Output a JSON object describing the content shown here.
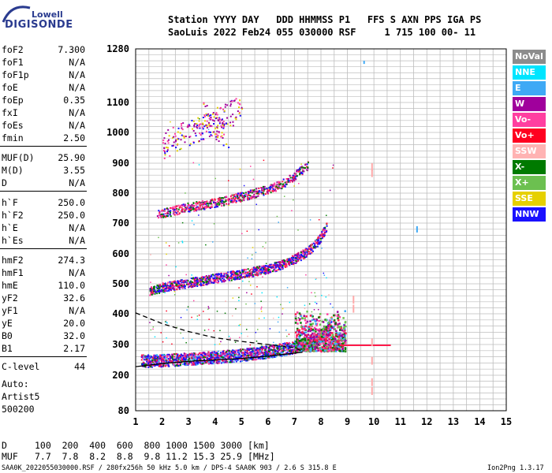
{
  "logo": {
    "line1": "Lowell",
    "line2": "DIGISONDE"
  },
  "header": {
    "line1": "Station YYYY DAY   DDD HHMMSS P1   FFS S AXN PPS IGA PS",
    "line2": "SaoLuis 2022 Feb24 055 030000 RSF     1 715 100 00- 11"
  },
  "params": [
    {
      "label": "foF2",
      "value": "7.300"
    },
    {
      "label": "foF1",
      "value": "N/A"
    },
    {
      "label": "foF1p",
      "value": "N/A"
    },
    {
      "label": "foE",
      "value": "N/A"
    },
    {
      "label": "foEp",
      "value": "0.35"
    },
    {
      "label": "fxI",
      "value": "N/A"
    },
    {
      "label": "foEs",
      "value": "N/A"
    },
    {
      "label": "fmin",
      "value": "2.50"
    },
    {
      "label": "MUF(D)",
      "value": "25.90"
    },
    {
      "label": "M(D)",
      "value": "3.55"
    },
    {
      "label": "D",
      "value": "N/A"
    },
    {
      "label": "h`F",
      "value": "250.0"
    },
    {
      "label": "h`F2",
      "value": "250.0"
    },
    {
      "label": "h`E",
      "value": "N/A"
    },
    {
      "label": "h`Es",
      "value": "N/A"
    },
    {
      "label": "hmF2",
      "value": "274.3"
    },
    {
      "label": "hmF1",
      "value": "N/A"
    },
    {
      "label": "hmE",
      "value": "110.0"
    },
    {
      "label": "yF2",
      "value": "32.6"
    },
    {
      "label": "yF1",
      "value": "N/A"
    },
    {
      "label": "yE",
      "value": "20.0"
    },
    {
      "label": "B0",
      "value": "32.0"
    },
    {
      "label": "B1",
      "value": "2.17"
    },
    {
      "label": "C-level",
      "value": "44"
    }
  ],
  "auto": {
    "line1": "Auto:",
    "line2": "Artist5",
    "line3": "500200"
  },
  "muf_table": {
    "d_label": "D",
    "d_values": "100  200  400  600  800 1000 1500 3000 [km]",
    "muf_label": "MUF",
    "muf_values": "7.7  7.8  8.2  8.8  9.8 11.2 15.3 25.9 [MHz]"
  },
  "footer": "SAA0K_2022055030000.RSF / 280fx256h 50 kHz 5.0 km / DPS-4 SAA0K 903 / 2.6 S 315.8 E",
  "version": "Ion2Png 1.3.17",
  "legend": [
    {
      "label": "NoVal",
      "color": "#8c8c8c"
    },
    {
      "label": "NNE",
      "color": "#00e5ff"
    },
    {
      "label": "E",
      "color": "#3fa9f5"
    },
    {
      "label": "W",
      "color": "#a0009c"
    },
    {
      "label": "Vo-",
      "color": "#ff3fa0"
    },
    {
      "label": "Vo+",
      "color": "#ff0020"
    },
    {
      "label": "SSW",
      "color": "#ffb3b3"
    },
    {
      "label": "X-",
      "color": "#007a00"
    },
    {
      "label": "X+",
      "color": "#6cc050"
    },
    {
      "label": "SSE",
      "color": "#e6d000"
    },
    {
      "label": "NNW",
      "color": "#1a10ff"
    }
  ],
  "chart_data": {
    "type": "scatter",
    "xlabel": "",
    "ylabel": "",
    "xlim": [
      1,
      15
    ],
    "ylim": [
      80,
      1280
    ],
    "x_ticks": [
      "1",
      "2",
      "3",
      "4",
      "5",
      "6",
      "7",
      "8",
      "9",
      "10",
      "11",
      "12",
      "13",
      "14",
      "15"
    ],
    "y_ticks": [
      "80",
      "200",
      "300",
      "400",
      "500",
      "600",
      "700",
      "800",
      "900",
      "1000",
      "1100",
      "1280"
    ],
    "grid": true,
    "traces": [
      {
        "name": "1st hop O-trace",
        "color": "#ff1a4a",
        "points": [
          [
            1.2,
            248
          ],
          [
            2,
            250
          ],
          [
            3,
            255
          ],
          [
            4,
            260
          ],
          [
            5,
            268
          ],
          [
            6,
            278
          ],
          [
            6.5,
            285
          ],
          [
            7,
            293
          ],
          [
            7.5,
            305
          ],
          [
            7.9,
            320
          ],
          [
            8.2,
            345
          ],
          [
            8.4,
            380
          ]
        ]
      },
      {
        "name": "2nd hop",
        "color": "#e0007a",
        "points": [
          [
            1.5,
            475
          ],
          [
            2,
            490
          ],
          [
            3,
            505
          ],
          [
            4,
            520
          ],
          [
            5,
            535
          ],
          [
            6,
            552
          ],
          [
            6.5,
            565
          ],
          [
            7,
            585
          ],
          [
            7.5,
            610
          ],
          [
            7.9,
            645
          ],
          [
            8.2,
            690
          ]
        ]
      },
      {
        "name": "3rd hop",
        "color": "#e0007a",
        "points": [
          [
            1.8,
            730
          ],
          [
            2.5,
            745
          ],
          [
            3,
            755
          ],
          [
            4,
            770
          ],
          [
            5,
            790
          ],
          [
            6,
            815
          ],
          [
            6.5,
            832
          ],
          [
            7,
            860
          ],
          [
            7.5,
            895
          ]
        ]
      },
      {
        "name": "scatter hi",
        "color": "#a0009c",
        "points": [
          [
            2,
            960
          ],
          [
            3,
            1000
          ],
          [
            4,
            1040
          ],
          [
            5,
            1080
          ],
          [
            3.5,
            1060
          ],
          [
            4.5,
            990
          ]
        ]
      }
    ],
    "profile": {
      "name": "true-height profile",
      "color": "#000000",
      "points": [
        [
          1,
          228
        ],
        [
          2,
          238
        ],
        [
          3,
          245
        ],
        [
          4,
          250
        ],
        [
          5,
          255
        ],
        [
          6,
          262
        ],
        [
          6.8,
          270
        ],
        [
          7.3,
          275
        ]
      ]
    },
    "profile_dashed": {
      "name": "profile dashed",
      "color": "#000000",
      "points": [
        [
          1,
          403
        ],
        [
          2,
          368
        ],
        [
          3,
          342
        ],
        [
          4,
          322
        ],
        [
          5,
          310
        ],
        [
          6,
          300
        ],
        [
          7,
          290
        ],
        [
          7.3,
          278
        ]
      ]
    },
    "sse_marks": {
      "color": "#ffaaaa",
      "points": [
        [
          9.9,
          900
        ],
        [
          9.9,
          880
        ],
        [
          9.9,
          320
        ],
        [
          9.9,
          260
        ],
        [
          9.9,
          190
        ],
        [
          9.9,
          160
        ],
        [
          9.2,
          460
        ],
        [
          9.2,
          430
        ]
      ]
    }
  }
}
